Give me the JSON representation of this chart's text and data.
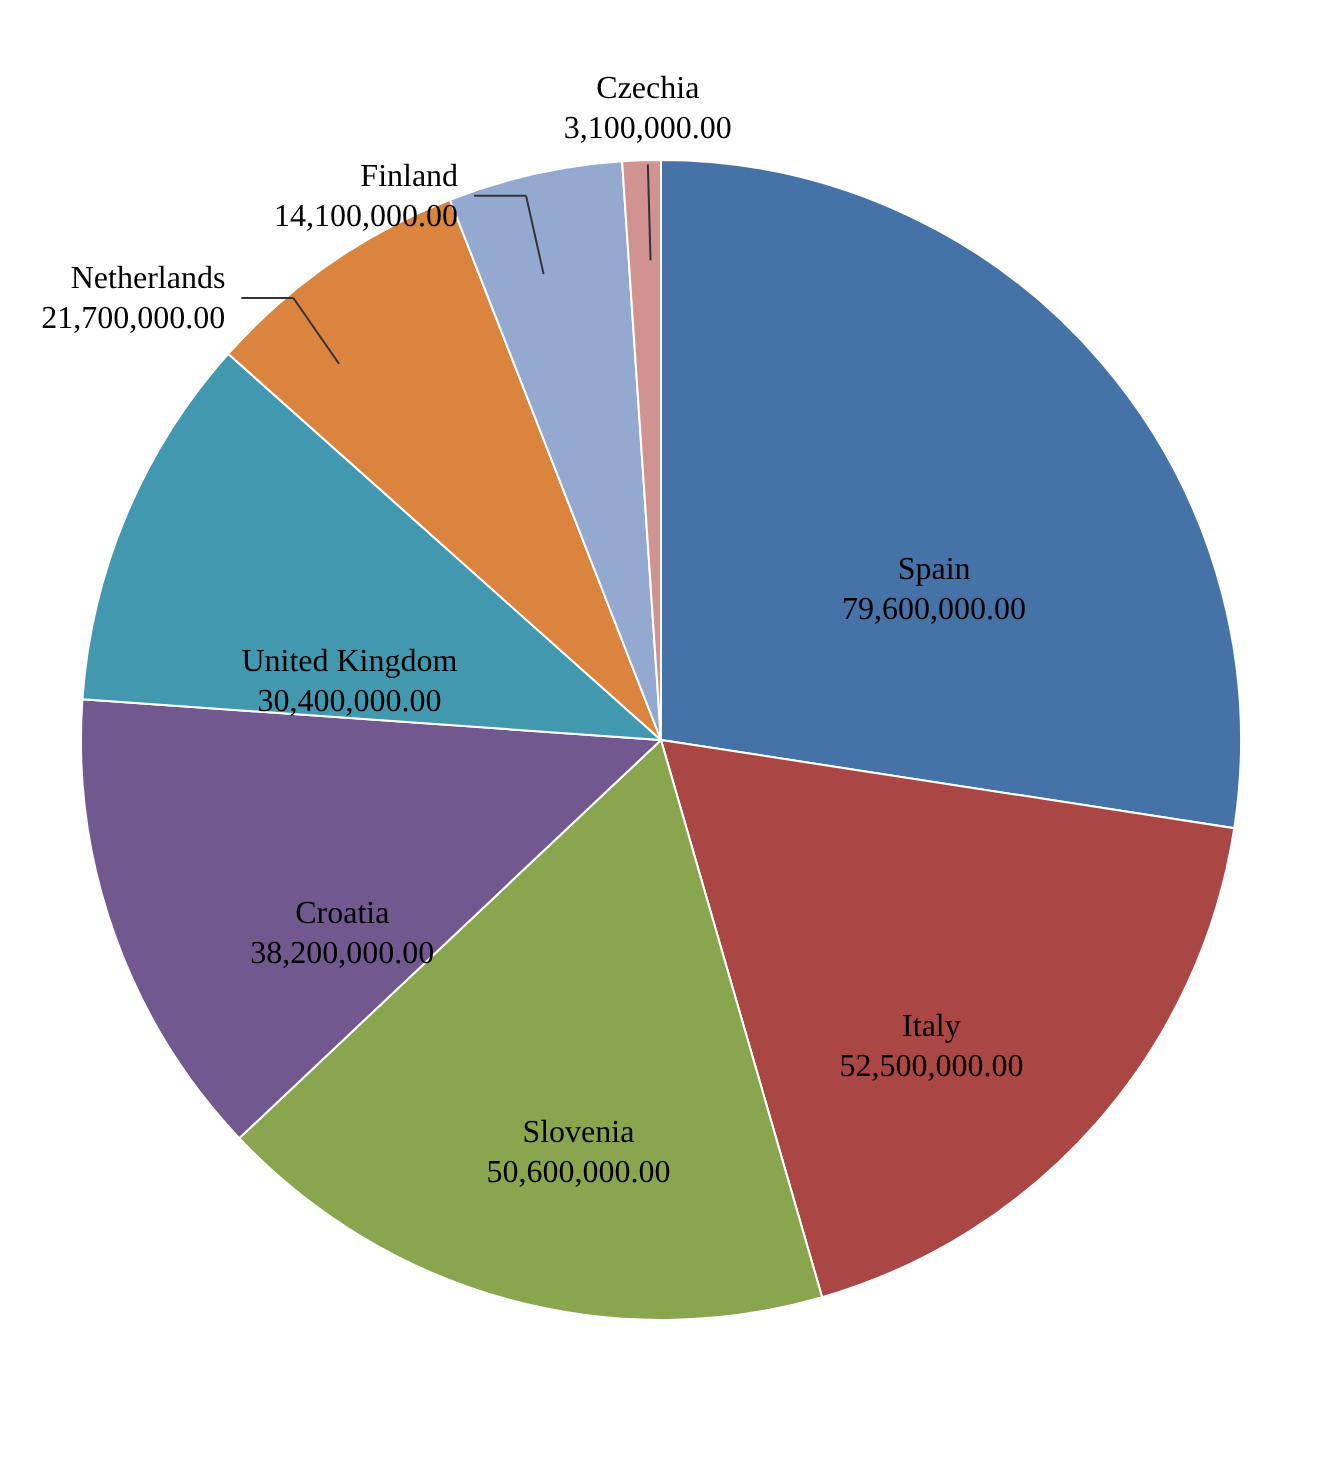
{
  "chart_data": {
    "type": "pie",
    "categories": [
      "Spain",
      "Italy",
      "Slovenia",
      "Croatia",
      "United Kingdom",
      "Netherlands",
      "Finland",
      "Czechia"
    ],
    "values": [
      79600000,
      52500000,
      50600000,
      38200000,
      30400000,
      21700000,
      14100000,
      3100000
    ],
    "colors": [
      "#4572a7",
      "#aa4643",
      "#89a54e",
      "#71588f",
      "#4198af",
      "#db843d",
      "#93a9cf",
      "#d19392"
    ],
    "value_labels": [
      "79,600,000.00",
      "52,500,000.00",
      "50,600,000.00",
      "38,200,000.00",
      "30,400,000.00",
      "21,700,000.00",
      "14,100,000.00",
      "3,100,000.00"
    ],
    "data_labels": true,
    "legend": false
  }
}
